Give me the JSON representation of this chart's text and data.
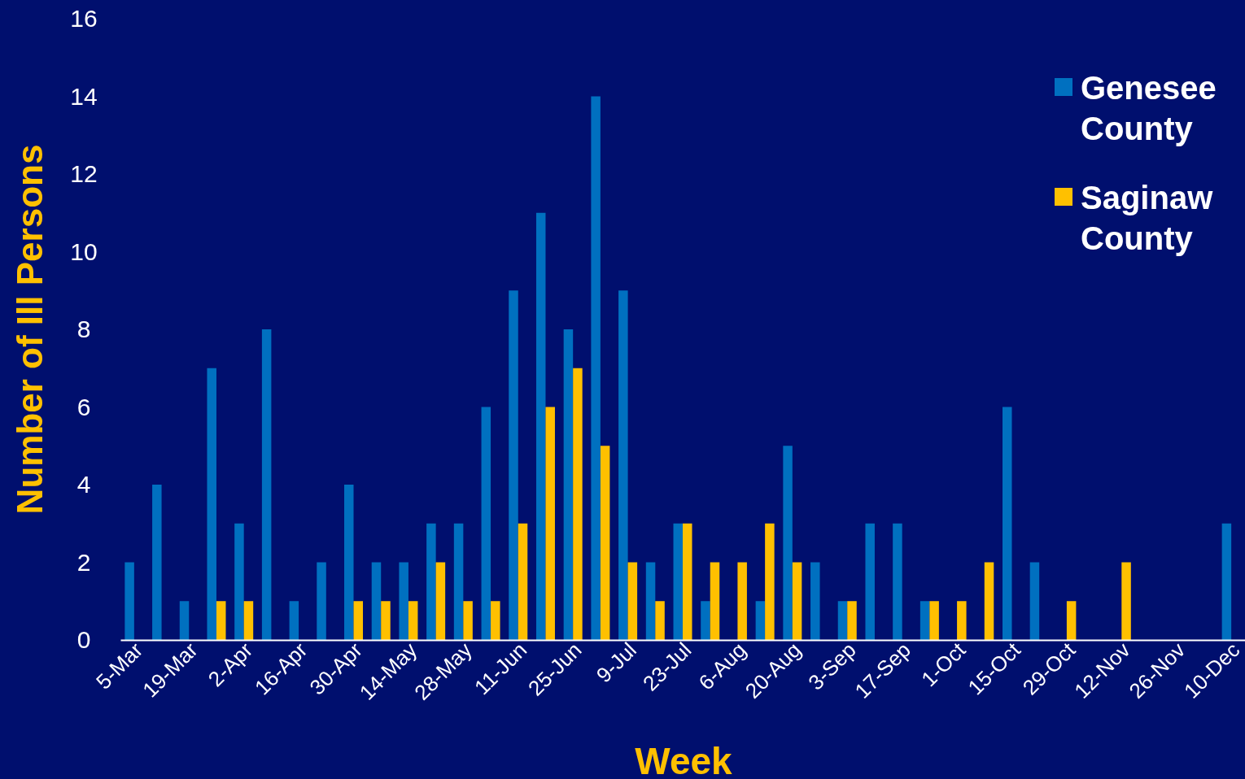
{
  "chart_data": {
    "type": "bar",
    "xlabel": "Week",
    "ylabel": "Number of Ill Persons",
    "categories": [
      "5-Mar",
      null,
      "19-Mar",
      null,
      "2-Apr",
      null,
      "16-Apr",
      null,
      "30-Apr",
      null,
      "14-May",
      null,
      "28-May",
      null,
      "11-Jun",
      null,
      "25-Jun",
      null,
      "9-Jul",
      null,
      "23-Jul",
      null,
      "6-Aug",
      null,
      "20-Aug",
      null,
      "3-Sep",
      null,
      "17-Sep",
      null,
      "1-Oct",
      null,
      "15-Oct",
      null,
      "29-Oct",
      null,
      "12-Nov",
      null,
      "26-Nov",
      null,
      "10-Dec"
    ],
    "series": [
      {
        "name": "Genesee County",
        "color": "#0070c0",
        "values": [
          2,
          4,
          1,
          7,
          3,
          8,
          1,
          2,
          4,
          2,
          2,
          3,
          3,
          6,
          9,
          11,
          8,
          14,
          9,
          2,
          3,
          1,
          0,
          1,
          5,
          2,
          1,
          3,
          3,
          1,
          0,
          0,
          6,
          2,
          0,
          0,
          0,
          0,
          0,
          0,
          3
        ]
      },
      {
        "name": "Saginaw County",
        "color": "#ffc000",
        "values": [
          0,
          0,
          0,
          1,
          1,
          0,
          0,
          0,
          1,
          1,
          1,
          2,
          1,
          1,
          3,
          6,
          7,
          5,
          2,
          1,
          3,
          2,
          2,
          3,
          2,
          0,
          1,
          0,
          0,
          1,
          1,
          2,
          0,
          0,
          1,
          0,
          2,
          0,
          0,
          0,
          0
        ]
      }
    ],
    "ylim": [
      0,
      16
    ],
    "yticks": [
      0,
      2,
      4,
      6,
      8,
      10,
      12,
      14,
      16
    ],
    "grid": false,
    "legend": "top right"
  }
}
